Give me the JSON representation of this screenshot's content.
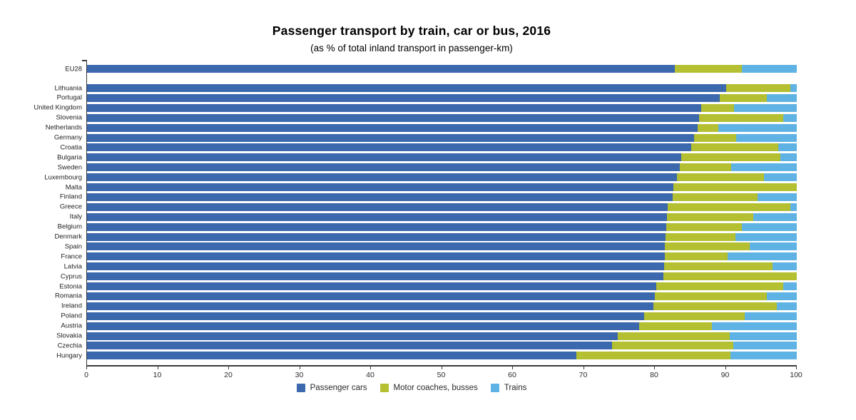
{
  "colors": {
    "title": "#153e90",
    "subtitle": "#2157a7",
    "axis": "#3a3a3a",
    "cars": "#3c68ae",
    "buses": "#b4c032",
    "trains": "#5fb3e4"
  },
  "chart_data": {
    "type": "bar",
    "orientation": "horizontal-stacked",
    "title": "Passenger transport by train, car or bus, 2016",
    "subtitle": "(as % of total inland transport in passenger-km)",
    "xlabel": "",
    "ylabel": "",
    "xlim": [
      0,
      100
    ],
    "x_ticks": [
      0,
      10,
      20,
      30,
      40,
      50,
      60,
      70,
      80,
      90,
      100
    ],
    "grid": false,
    "legend_position": "bottom",
    "series": [
      {
        "name": "Passenger cars",
        "color": "#3c68ae"
      },
      {
        "name": "Motor coaches, busses",
        "color": "#b4c032"
      },
      {
        "name": "Trains",
        "color": "#5fb3e4"
      }
    ],
    "categories": [
      "EU28",
      "Lithuania",
      "Portugal",
      "United Kingdom",
      "Slovenia",
      "Netherlands",
      "Germany",
      "Croatia",
      "Bulgaria",
      "Sweden",
      "Luxembourg",
      "Malta",
      "Finland",
      "Greece",
      "Italy",
      "Belgium",
      "Denmark",
      "Spain",
      "France",
      "Latvia",
      "Cyprus",
      "Estonia",
      "Romania",
      "Ireland",
      "Poland",
      "Austria",
      "Slovakia",
      "Czechia",
      "Hungary"
    ],
    "values": [
      [
        82.8,
        9.5,
        7.7
      ],
      [
        90.0,
        9.1,
        0.9
      ],
      [
        89.1,
        6.7,
        4.2
      ],
      [
        86.5,
        4.7,
        8.8
      ],
      [
        86.2,
        11.9,
        1.9
      ],
      [
        86.0,
        2.9,
        11.1
      ],
      [
        85.5,
        6.0,
        8.5
      ],
      [
        85.1,
        12.3,
        2.6
      ],
      [
        83.7,
        14.0,
        2.3
      ],
      [
        83.5,
        7.3,
        9.2
      ],
      [
        83.1,
        12.3,
        4.6
      ],
      [
        82.6,
        17.4,
        0.0
      ],
      [
        82.5,
        12.0,
        5.5
      ],
      [
        81.8,
        17.3,
        0.9
      ],
      [
        81.7,
        12.2,
        6.1
      ],
      [
        81.6,
        10.7,
        7.7
      ],
      [
        81.5,
        9.9,
        8.6
      ],
      [
        81.4,
        12.0,
        6.6
      ],
      [
        81.4,
        8.9,
        9.7
      ],
      [
        81.3,
        15.3,
        3.4
      ],
      [
        81.2,
        18.8,
        0.0
      ],
      [
        80.2,
        17.9,
        1.9
      ],
      [
        80.0,
        15.8,
        4.2
      ],
      [
        79.8,
        17.4,
        2.8
      ],
      [
        78.5,
        14.2,
        7.3
      ],
      [
        77.8,
        10.2,
        12.0
      ],
      [
        74.8,
        15.8,
        9.4
      ],
      [
        74.0,
        17.1,
        8.9
      ],
      [
        68.9,
        21.8,
        9.3
      ]
    ]
  }
}
